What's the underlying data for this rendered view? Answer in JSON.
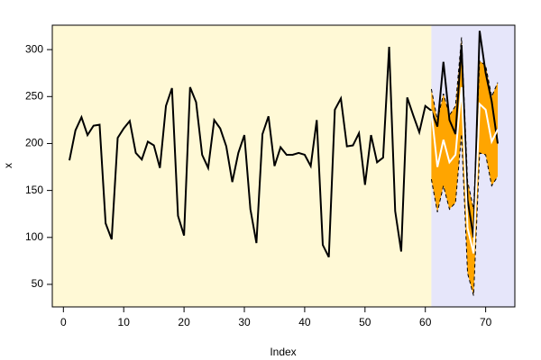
{
  "chart_data": {
    "type": "line",
    "xlabel": "Index",
    "ylabel": "x",
    "x": [
      1,
      2,
      3,
      4,
      5,
      6,
      7,
      8,
      9,
      10,
      11,
      12,
      13,
      14,
      15,
      16,
      17,
      18,
      19,
      20,
      21,
      22,
      23,
      24,
      25,
      26,
      27,
      28,
      29,
      30,
      31,
      32,
      33,
      34,
      35,
      36,
      37,
      38,
      39,
      40,
      41,
      42,
      43,
      44,
      45,
      46,
      47,
      48,
      49,
      50,
      51,
      52,
      53,
      54,
      55,
      56,
      57,
      58,
      59,
      60,
      61,
      62,
      63,
      64,
      65,
      66,
      67,
      68,
      69,
      70,
      71,
      72
    ],
    "series": [
      {
        "color": "#000000",
        "values": [
          182,
          214,
          228,
          209,
          219,
          220,
          115,
          98,
          206,
          216,
          224,
          190,
          183,
          202,
          198,
          174,
          240,
          259,
          123,
          102,
          260,
          244,
          188,
          174,
          225,
          216,
          197,
          159,
          190,
          209,
          130,
          94,
          210,
          229,
          176,
          196,
          188,
          188,
          190,
          188,
          176,
          225,
          92,
          79,
          236,
          248,
          197,
          198,
          211,
          156,
          209,
          180,
          185,
          303,
          128,
          85,
          249,
          230,
          212,
          240,
          235,
          218,
          287,
          225,
          210,
          305,
          140,
          100,
          320,
          275,
          245,
          200
        ]
      },
      {
        "color": "#ffffff",
        "values": [
          null,
          null,
          null,
          null,
          null,
          null,
          null,
          null,
          null,
          null,
          null,
          null,
          null,
          null,
          null,
          null,
          null,
          null,
          null,
          null,
          null,
          null,
          null,
          null,
          null,
          null,
          null,
          null,
          null,
          null,
          null,
          null,
          null,
          null,
          null,
          null,
          null,
          null,
          null,
          null,
          null,
          null,
          null,
          null,
          null,
          null,
          null,
          null,
          null,
          null,
          null,
          null,
          null,
          null,
          null,
          null,
          null,
          null,
          null,
          null,
          235,
          175,
          204,
          180,
          188,
          260,
          110,
          83,
          242,
          236,
          202,
          215
        ]
      }
    ],
    "band": {
      "color": "#ffa500",
      "upper": [
        null,
        null,
        null,
        null,
        null,
        null,
        null,
        null,
        null,
        null,
        null,
        null,
        null,
        null,
        null,
        null,
        null,
        null,
        null,
        null,
        null,
        null,
        null,
        null,
        null,
        null,
        null,
        null,
        null,
        null,
        null,
        null,
        null,
        null,
        null,
        null,
        null,
        null,
        null,
        null,
        null,
        null,
        null,
        null,
        null,
        null,
        null,
        null,
        null,
        null,
        null,
        null,
        null,
        null,
        null,
        null,
        null,
        null,
        null,
        null,
        258,
        225,
        253,
        230,
        240,
        313,
        160,
        130,
        288,
        283,
        250,
        265
      ],
      "lower": [
        null,
        null,
        null,
        null,
        null,
        null,
        null,
        null,
        null,
        null,
        null,
        null,
        null,
        null,
        null,
        null,
        null,
        null,
        null,
        null,
        null,
        null,
        null,
        null,
        null,
        null,
        null,
        null,
        null,
        null,
        null,
        null,
        null,
        null,
        null,
        null,
        null,
        null,
        null,
        null,
        null,
        null,
        null,
        null,
        null,
        null,
        null,
        null,
        null,
        null,
        null,
        null,
        null,
        null,
        null,
        null,
        null,
        null,
        null,
        null,
        162,
        127,
        155,
        130,
        137,
        210,
        62,
        38,
        190,
        188,
        155,
        165
      ]
    },
    "background_split": 61,
    "background_colors": [
      "#fff9d6",
      "#e6e6fa"
    ],
    "xlim": [
      -1.84,
      74.84
    ],
    "xticks": [
      0,
      10,
      20,
      30,
      40,
      50,
      60,
      70
    ],
    "ylim": [
      26,
      326
    ],
    "yticks": [
      50,
      100,
      150,
      200,
      250,
      300
    ]
  }
}
